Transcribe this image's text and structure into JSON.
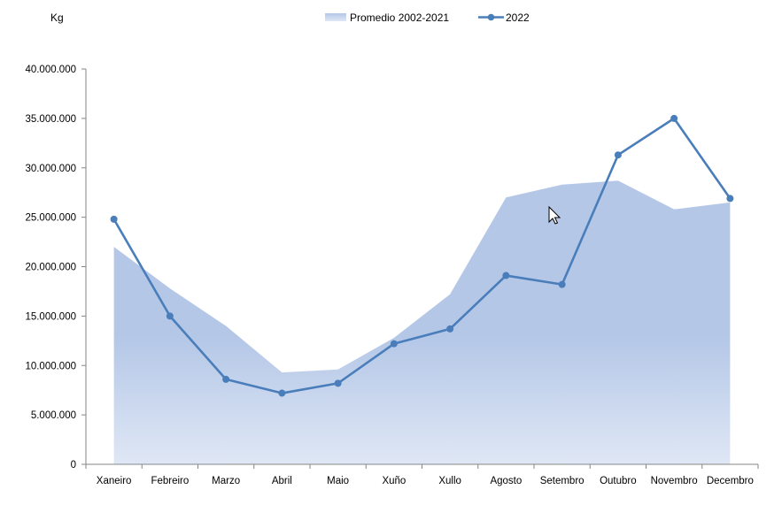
{
  "chart_data": {
    "type": "line",
    "ylabel": "Kg",
    "ylim": [
      0,
      40000000
    ],
    "yticks": [
      0,
      5000000,
      10000000,
      15000000,
      20000000,
      25000000,
      30000000,
      35000000,
      40000000
    ],
    "ytick_labels": [
      "0",
      "5.000.000",
      "10.000.000",
      "15.000.000",
      "20.000.000",
      "25.000.000",
      "30.000.000",
      "35.000.000",
      "40.000.000"
    ],
    "categories": [
      "Xaneiro",
      "Febreiro",
      "Marzo",
      "Abril",
      "Maio",
      "Xuño",
      "Xullo",
      "Agosto",
      "Setembro",
      "Outubro",
      "Novembro",
      "Decembro"
    ],
    "legend_position": "top",
    "grid": false,
    "series": [
      {
        "name": "Promedio 2002-2021",
        "kind": "area",
        "color": "#b4c7e7",
        "values": [
          22000000,
          17800000,
          14000000,
          9300000,
          9600000,
          12800000,
          17200000,
          27000000,
          28300000,
          28700000,
          25800000,
          26500000
        ]
      },
      {
        "name": "2022",
        "kind": "line",
        "color": "#4a7ebb",
        "values": [
          24800000,
          15000000,
          8600000,
          7200000,
          8200000,
          12200000,
          13700000,
          19100000,
          18200000,
          31300000,
          35000000,
          26900000
        ]
      }
    ]
  }
}
